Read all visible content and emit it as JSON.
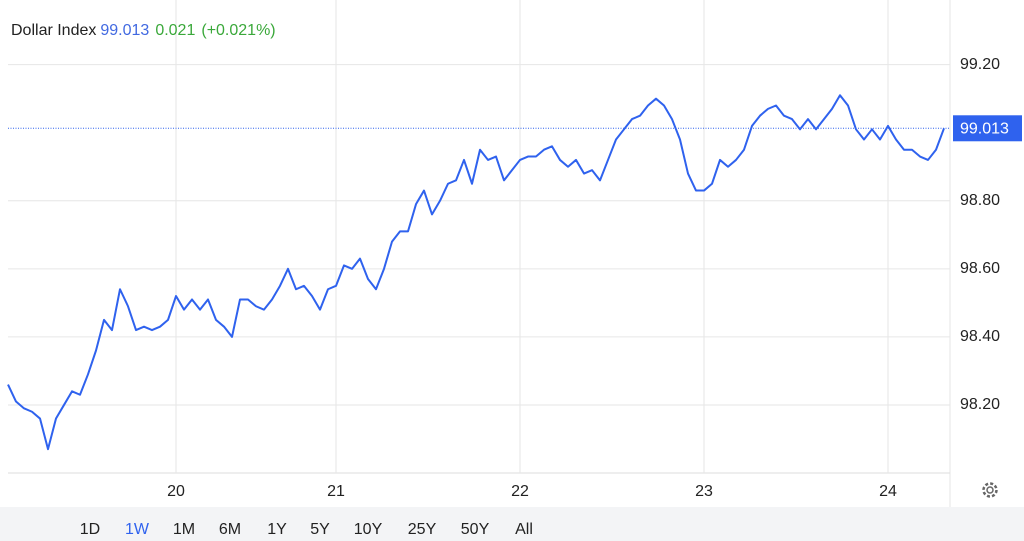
{
  "chart_data": {
    "type": "line",
    "title": "Dollar Index",
    "change": "0.021",
    "change_pct": "(+0.021%)",
    "categories": [
      null,
      null,
      null,
      null,
      null,
      null,
      null,
      null,
      null,
      null,
      null,
      null,
      null,
      null,
      null,
      null,
      null,
      null,
      null,
      null,
      null,
      "20",
      null,
      null,
      null,
      null,
      null,
      null,
      null,
      null,
      null,
      null,
      null,
      null,
      null,
      null,
      null,
      null,
      null,
      null,
      null,
      "21",
      null,
      null,
      null,
      null,
      null,
      null,
      null,
      null,
      null,
      null,
      null,
      null,
      null,
      null,
      null,
      null,
      null,
      null,
      null,
      null,
      null,
      null,
      "22",
      null,
      null,
      null,
      null,
      null,
      null,
      null,
      null,
      null,
      null,
      null,
      null,
      null,
      null,
      null,
      null,
      null,
      null,
      null,
      null,
      null,
      null,
      "23",
      null,
      null,
      null,
      null,
      null,
      null,
      null,
      null,
      null,
      null,
      null,
      null,
      null,
      null,
      null,
      null,
      null,
      null,
      null,
      null,
      null,
      null,
      "24",
      null,
      null,
      null,
      null,
      null,
      null,
      null
    ],
    "series": [
      {
        "name": "Dollar Index",
        "color": "#2f62ee",
        "values": [
          98.26,
          98.21,
          98.19,
          98.18,
          98.16,
          98.07,
          98.16,
          98.2,
          98.24,
          98.23,
          98.29,
          98.36,
          98.45,
          98.42,
          98.54,
          98.49,
          98.42,
          98.43,
          98.42,
          98.43,
          98.45,
          98.52,
          98.48,
          98.51,
          98.48,
          98.51,
          98.45,
          98.43,
          98.4,
          98.51,
          98.51,
          98.49,
          98.48,
          98.51,
          98.55,
          98.6,
          98.54,
          98.55,
          98.52,
          98.48,
          98.54,
          98.55,
          98.61,
          98.6,
          98.63,
          98.57,
          98.54,
          98.6,
          98.68,
          98.71,
          98.71,
          98.79,
          98.83,
          98.76,
          98.8,
          98.85,
          98.86,
          98.92,
          98.85,
          98.95,
          98.92,
          98.93,
          98.86,
          98.89,
          98.92,
          98.93,
          98.93,
          98.95,
          98.96,
          98.92,
          98.9,
          98.92,
          98.88,
          98.89,
          98.86,
          98.92,
          98.98,
          99.01,
          99.04,
          99.05,
          99.08,
          99.1,
          99.08,
          99.04,
          98.98,
          98.88,
          98.83,
          98.83,
          98.85,
          98.92,
          98.9,
          98.92,
          98.95,
          99.02,
          99.05,
          99.07,
          99.08,
          99.05,
          99.04,
          99.01,
          99.04,
          99.01,
          99.04,
          99.07,
          99.11,
          99.08,
          99.01,
          98.98,
          99.01,
          98.98,
          99.02,
          98.98,
          98.95,
          98.95,
          98.93,
          98.92,
          98.95,
          99.013
        ]
      }
    ],
    "ylim": [
      98.0,
      99.39
    ],
    "yticks": [
      {
        "value": 98.2,
        "label": "98.20"
      },
      {
        "value": 98.4,
        "label": "98.40"
      },
      {
        "value": 98.6,
        "label": "98.60"
      },
      {
        "value": 98.8,
        "label": "98.80"
      },
      {
        "value": 99.2,
        "label": "99.20"
      }
    ],
    "grid": true
  },
  "range_buttons": [
    "1D",
    "1W",
    "1M",
    "6M",
    "1Y",
    "5Y",
    "10Y",
    "25Y",
    "50Y",
    "All"
  ],
  "selected_range": "1W"
}
